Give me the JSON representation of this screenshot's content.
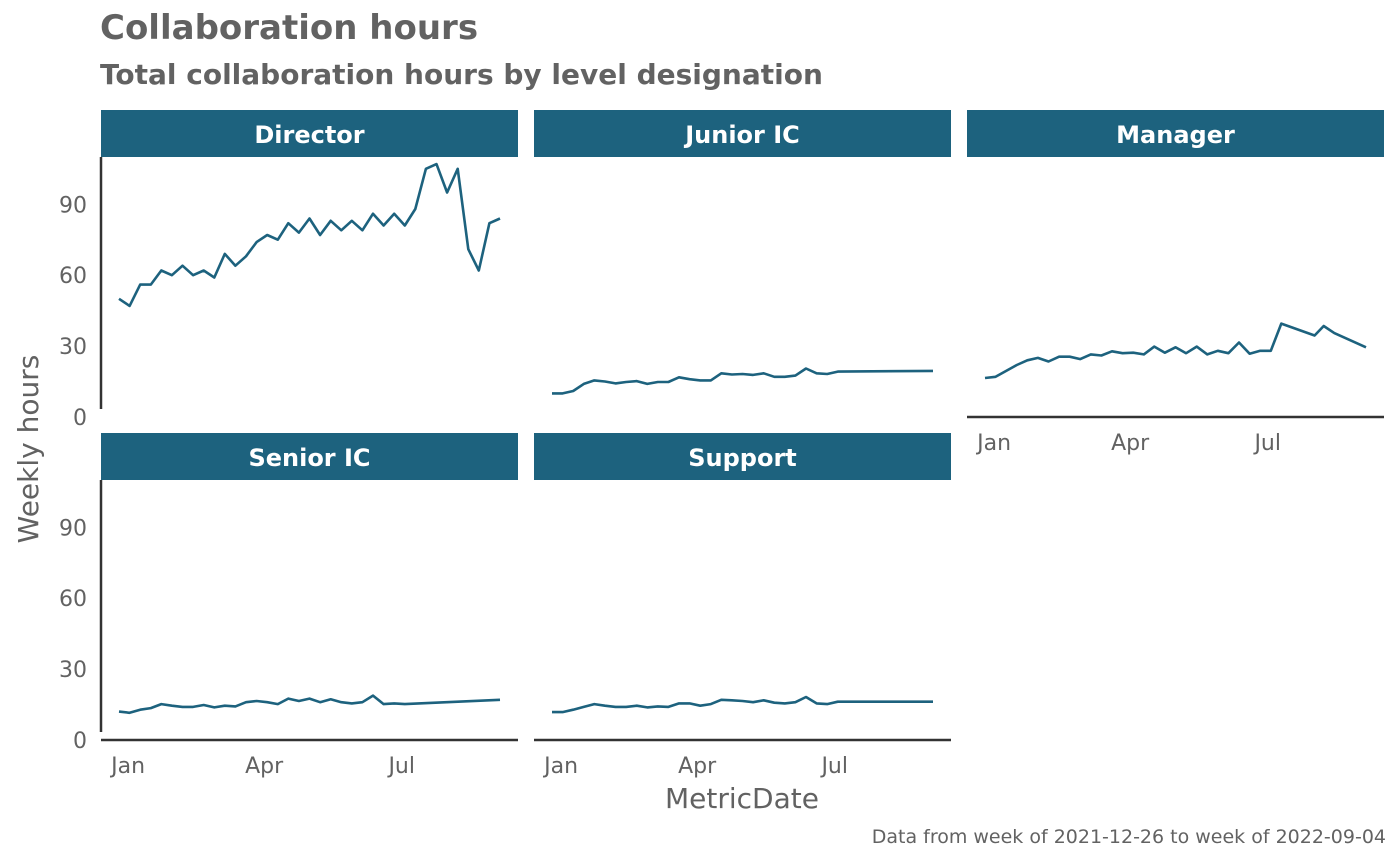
{
  "title": "Collaboration hours",
  "subtitle": "Total collaboration hours by level designation",
  "caption": "Data from week of 2021-12-26 to week of 2022-09-04",
  "colors": {
    "line": "#1D627E",
    "strip": "#1D627E",
    "strip_text": "#FFFFFF",
    "axis": "#333333",
    "text": "#626262"
  },
  "chart_data": {
    "type": "line",
    "facet_layout": "3 columns x 2 rows",
    "xlabel": "MetricDate",
    "ylabel": "Weekly hours",
    "x_range": [
      "2021-12-26",
      "2022-09-04"
    ],
    "ylim": [
      0,
      110
    ],
    "x_ticks": [
      {
        "date": "2022-01-01",
        "label": "Jan"
      },
      {
        "date": "2022-04-01",
        "label": "Apr"
      },
      {
        "date": "2022-07-01",
        "label": "Jul"
      }
    ],
    "y_ticks": [
      0,
      30,
      60,
      90
    ],
    "grid": false,
    "facets": [
      {
        "name": "Director",
        "points": [
          [
            "2021-12-26",
            50
          ],
          [
            "2022-01-02",
            47
          ],
          [
            "2022-01-09",
            56
          ],
          [
            "2022-01-16",
            56
          ],
          [
            "2022-01-23",
            62
          ],
          [
            "2022-01-30",
            60
          ],
          [
            "2022-02-06",
            64
          ],
          [
            "2022-02-13",
            60
          ],
          [
            "2022-02-20",
            62
          ],
          [
            "2022-02-27",
            59
          ],
          [
            "2022-03-06",
            69
          ],
          [
            "2022-03-13",
            64
          ],
          [
            "2022-03-20",
            68
          ],
          [
            "2022-03-27",
            74
          ],
          [
            "2022-04-03",
            77
          ],
          [
            "2022-04-10",
            75
          ],
          [
            "2022-04-17",
            82
          ],
          [
            "2022-04-24",
            78
          ],
          [
            "2022-05-01",
            84
          ],
          [
            "2022-05-08",
            77
          ],
          [
            "2022-05-15",
            83
          ],
          [
            "2022-05-22",
            79
          ],
          [
            "2022-05-29",
            83
          ],
          [
            "2022-06-05",
            79
          ],
          [
            "2022-06-12",
            86
          ],
          [
            "2022-06-19",
            81
          ],
          [
            "2022-06-26",
            86
          ],
          [
            "2022-07-03",
            81
          ],
          [
            "2022-07-10",
            88
          ],
          [
            "2022-07-17",
            105
          ],
          [
            "2022-07-24",
            107
          ],
          [
            "2022-07-31",
            95
          ],
          [
            "2022-08-07",
            105
          ],
          [
            "2022-08-14",
            71
          ],
          [
            "2022-08-21",
            62
          ],
          [
            "2022-08-28",
            82
          ],
          [
            "2022-09-04",
            84
          ]
        ]
      },
      {
        "name": "Junior IC",
        "points": [
          [
            "2021-12-26",
            10
          ],
          [
            "2022-01-02",
            10
          ],
          [
            "2022-01-09",
            11
          ],
          [
            "2022-01-16",
            14
          ],
          [
            "2022-01-23",
            15.5
          ],
          [
            "2022-01-30",
            15
          ],
          [
            "2022-02-06",
            14.2
          ],
          [
            "2022-02-13",
            14.8
          ],
          [
            "2022-02-20",
            15.2
          ],
          [
            "2022-02-27",
            14
          ],
          [
            "2022-03-06",
            14.8
          ],
          [
            "2022-03-13",
            14.8
          ],
          [
            "2022-03-20",
            16.8
          ],
          [
            "2022-03-27",
            16
          ],
          [
            "2022-04-03",
            15.5
          ],
          [
            "2022-04-10",
            15.5
          ],
          [
            "2022-04-17",
            18.5
          ],
          [
            "2022-04-24",
            18
          ],
          [
            "2022-05-01",
            18.2
          ],
          [
            "2022-05-08",
            17.8
          ],
          [
            "2022-05-15",
            18.5
          ],
          [
            "2022-05-22",
            17
          ],
          [
            "2022-05-29",
            17
          ],
          [
            "2022-06-05",
            17.5
          ],
          [
            "2022-06-12",
            20.5
          ],
          [
            "2022-06-19",
            18.5
          ],
          [
            "2022-06-26",
            18.2
          ],
          [
            "2022-07-03",
            19.2
          ],
          [
            "2022-09-04",
            19.5
          ]
        ]
      },
      {
        "name": "Manager",
        "points": [
          [
            "2021-12-26",
            16.5
          ],
          [
            "2022-01-02",
            17
          ],
          [
            "2022-01-09",
            19.5
          ],
          [
            "2022-01-16",
            22
          ],
          [
            "2022-01-23",
            24
          ],
          [
            "2022-01-30",
            25
          ],
          [
            "2022-02-06",
            23.5
          ],
          [
            "2022-02-13",
            25.5
          ],
          [
            "2022-02-20",
            25.5
          ],
          [
            "2022-02-27",
            24.5
          ],
          [
            "2022-03-06",
            26.5
          ],
          [
            "2022-03-13",
            26
          ],
          [
            "2022-03-20",
            27.8
          ],
          [
            "2022-03-27",
            27
          ],
          [
            "2022-04-03",
            27.2
          ],
          [
            "2022-04-10",
            26.5
          ],
          [
            "2022-04-17",
            29.8
          ],
          [
            "2022-04-24",
            27.2
          ],
          [
            "2022-05-01",
            29.5
          ],
          [
            "2022-05-08",
            27
          ],
          [
            "2022-05-15",
            29.8
          ],
          [
            "2022-05-22",
            26.5
          ],
          [
            "2022-05-29",
            28
          ],
          [
            "2022-06-05",
            27
          ],
          [
            "2022-06-12",
            31.5
          ],
          [
            "2022-06-19",
            26.8
          ],
          [
            "2022-06-26",
            28
          ],
          [
            "2022-07-03",
            28
          ],
          [
            "2022-07-10",
            39.5
          ],
          [
            "2022-08-01",
            34.5
          ],
          [
            "2022-08-07",
            38.5
          ],
          [
            "2022-08-14",
            35.5
          ],
          [
            "2022-09-04",
            29.5
          ]
        ]
      },
      {
        "name": "Senior IC",
        "points": [
          [
            "2021-12-26",
            12
          ],
          [
            "2022-01-02",
            11.5
          ],
          [
            "2022-01-09",
            12.8
          ],
          [
            "2022-01-16",
            13.5
          ],
          [
            "2022-01-23",
            15.2
          ],
          [
            "2022-01-30",
            14.5
          ],
          [
            "2022-02-06",
            14
          ],
          [
            "2022-02-13",
            14
          ],
          [
            "2022-02-20",
            14.8
          ],
          [
            "2022-02-27",
            13.8
          ],
          [
            "2022-03-06",
            14.5
          ],
          [
            "2022-03-13",
            14.2
          ],
          [
            "2022-03-20",
            16
          ],
          [
            "2022-03-27",
            16.5
          ],
          [
            "2022-04-03",
            16
          ],
          [
            "2022-04-10",
            15.2
          ],
          [
            "2022-04-17",
            17.5
          ],
          [
            "2022-04-24",
            16.5
          ],
          [
            "2022-05-01",
            17.5
          ],
          [
            "2022-05-08",
            16
          ],
          [
            "2022-05-15",
            17.2
          ],
          [
            "2022-05-22",
            16
          ],
          [
            "2022-05-29",
            15.5
          ],
          [
            "2022-06-05",
            16
          ],
          [
            "2022-06-12",
            18.8
          ],
          [
            "2022-06-19",
            15.2
          ],
          [
            "2022-06-26",
            15.5
          ],
          [
            "2022-07-03",
            15.2
          ],
          [
            "2022-09-04",
            17
          ]
        ]
      },
      {
        "name": "Support",
        "points": [
          [
            "2021-12-26",
            11.8
          ],
          [
            "2022-01-02",
            11.8
          ],
          [
            "2022-01-09",
            12.8
          ],
          [
            "2022-01-16",
            14
          ],
          [
            "2022-01-23",
            15.2
          ],
          [
            "2022-01-30",
            14.5
          ],
          [
            "2022-02-06",
            14
          ],
          [
            "2022-02-13",
            14
          ],
          [
            "2022-02-20",
            14.5
          ],
          [
            "2022-02-27",
            13.8
          ],
          [
            "2022-03-06",
            14.2
          ],
          [
            "2022-03-13",
            14
          ],
          [
            "2022-03-20",
            15.5
          ],
          [
            "2022-03-27",
            15.5
          ],
          [
            "2022-04-03",
            14.5
          ],
          [
            "2022-04-10",
            15.2
          ],
          [
            "2022-04-17",
            17
          ],
          [
            "2022-04-24",
            16.8
          ],
          [
            "2022-05-01",
            16.5
          ],
          [
            "2022-05-08",
            16
          ],
          [
            "2022-05-15",
            16.8
          ],
          [
            "2022-05-22",
            15.8
          ],
          [
            "2022-05-29",
            15.5
          ],
          [
            "2022-06-05",
            16
          ],
          [
            "2022-06-12",
            18.2
          ],
          [
            "2022-06-19",
            15.5
          ],
          [
            "2022-06-26",
            15.2
          ],
          [
            "2022-07-03",
            16.2
          ],
          [
            "2022-09-04",
            16.2
          ]
        ]
      }
    ]
  }
}
